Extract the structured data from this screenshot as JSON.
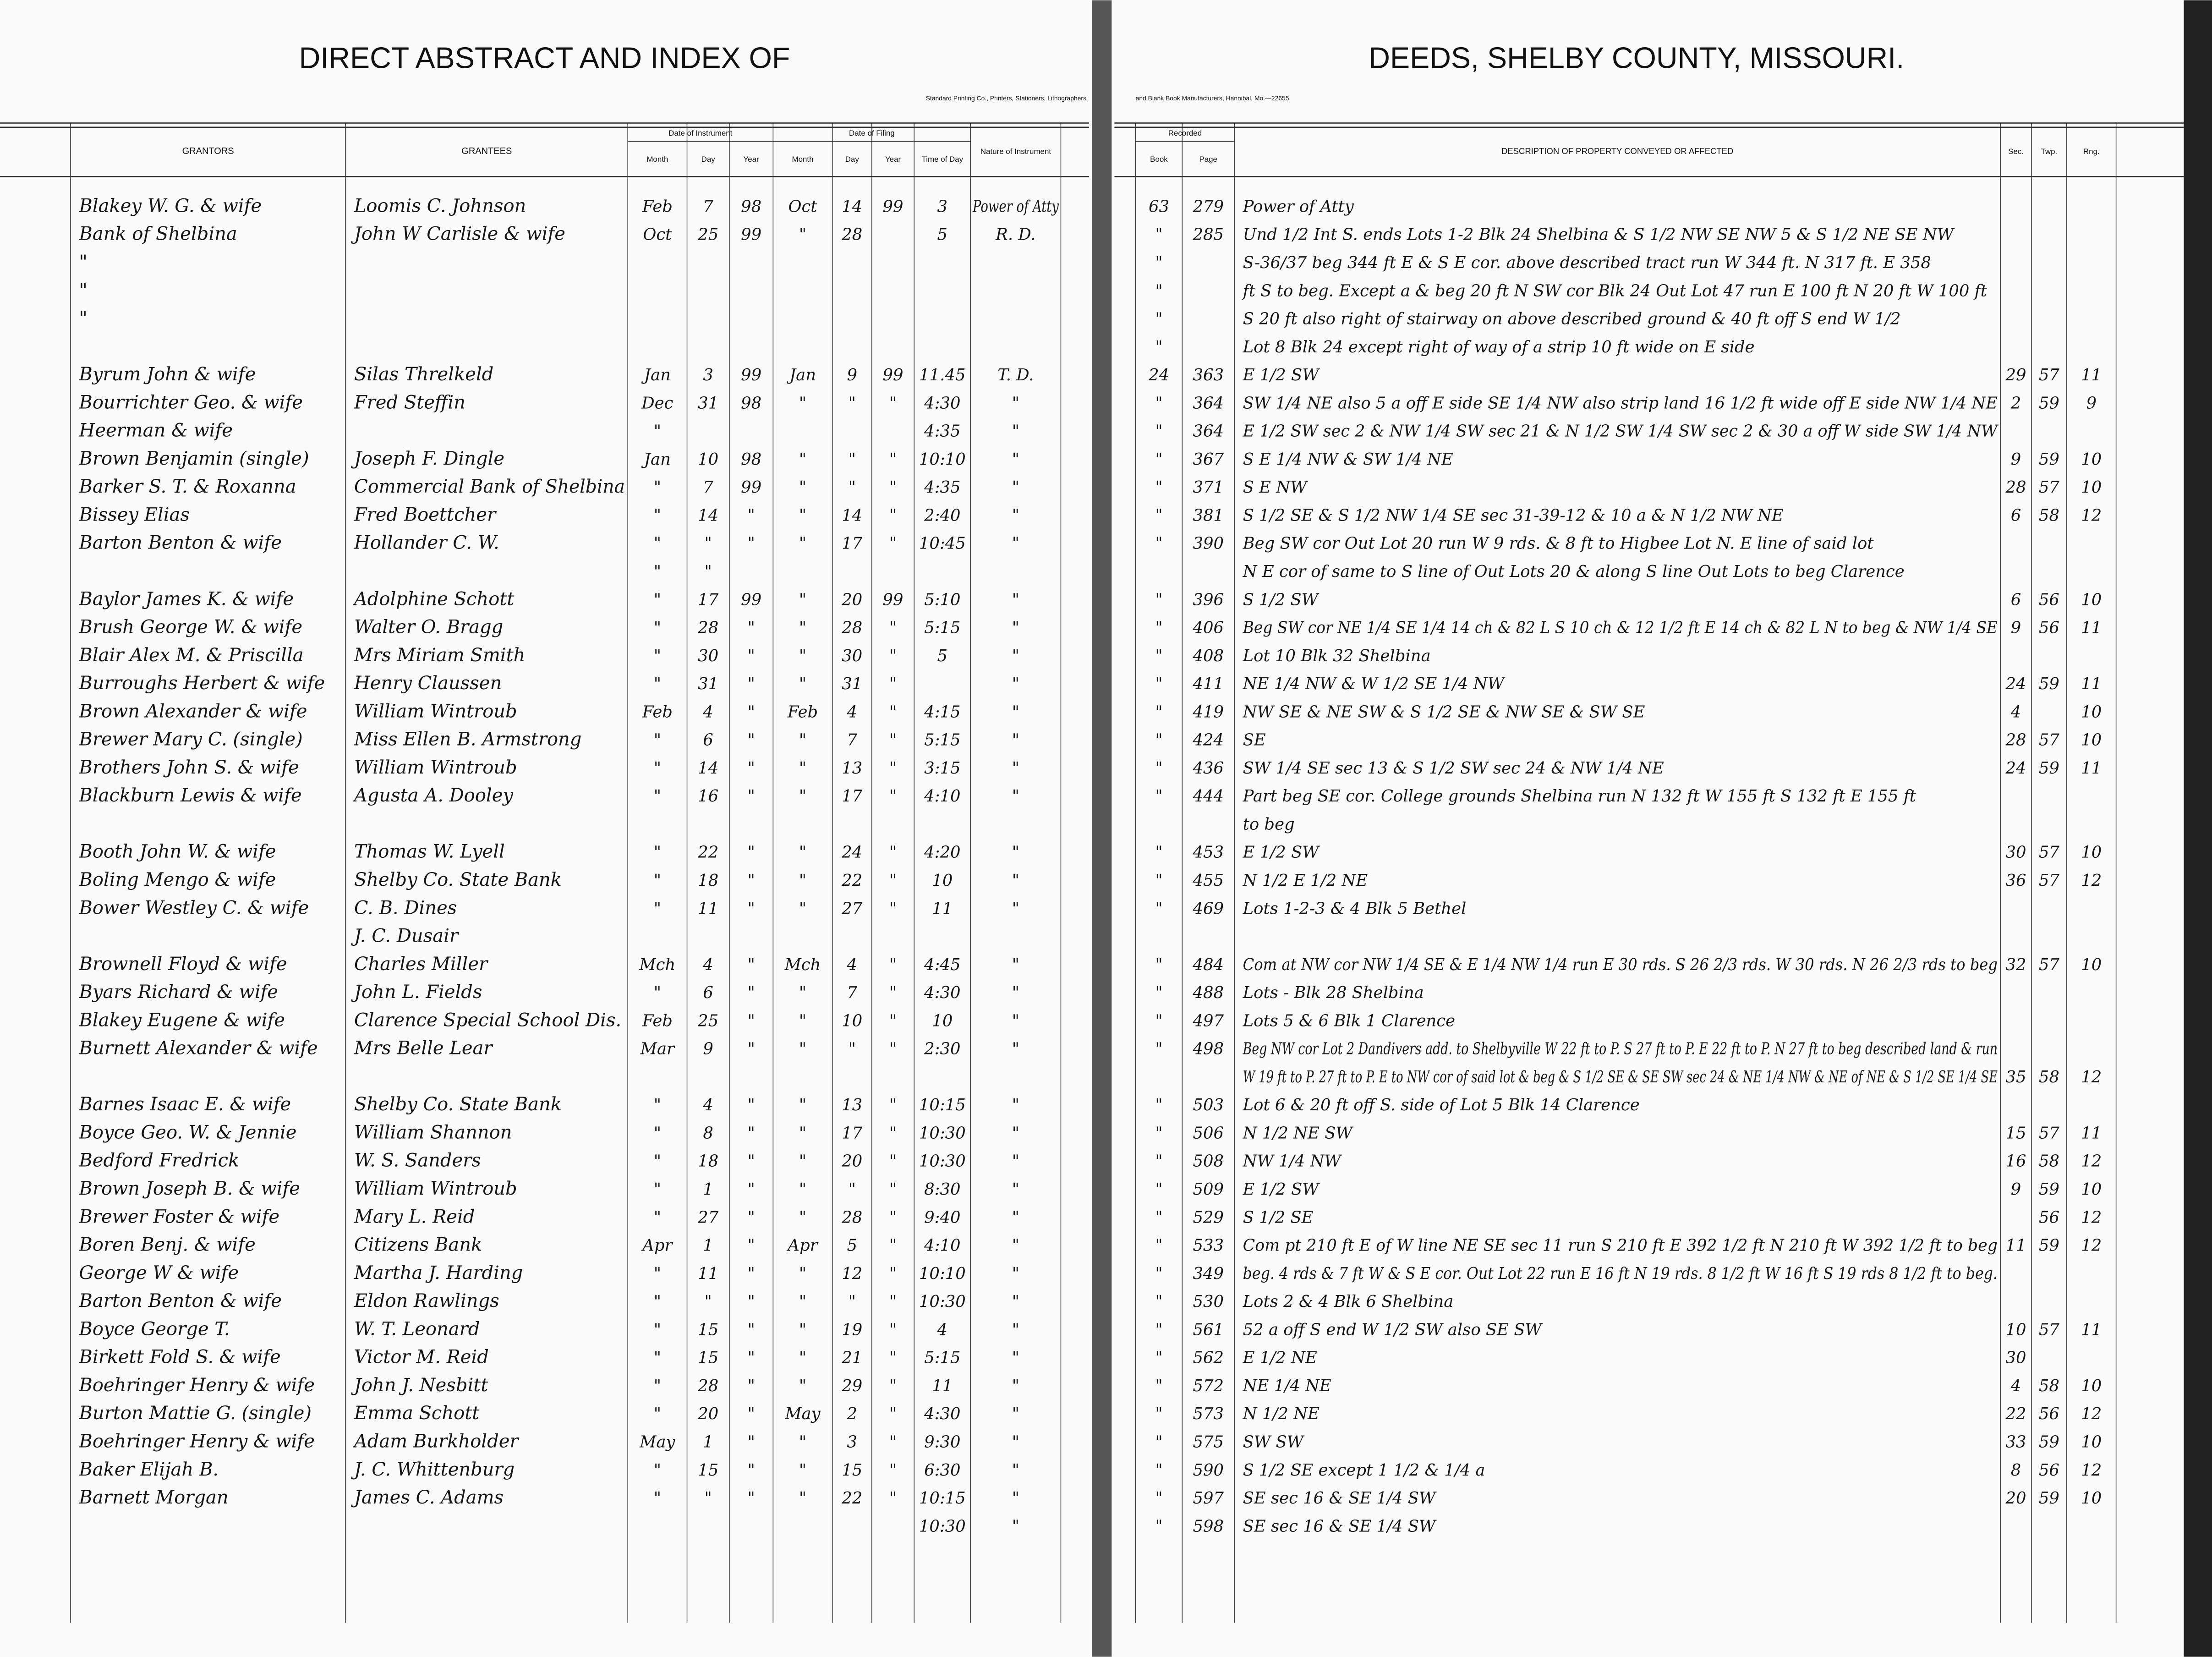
{
  "header": {
    "left_title": "DIRECT ABSTRACT AND INDEX OF",
    "right_title": "DEEDS, SHELBY COUNTY, MISSOURI.",
    "left_imprint": "Standard Printing Co., Printers, Stationers, Lithographers",
    "right_imprint": "and Blank Book Manufacturers, Hannibal, Mo.—22655"
  },
  "groups": [
    "Date of Instrument",
    "Date of Filing",
    "Recorded"
  ],
  "columns": [
    "GRANTORS",
    "GRANTEES",
    "Month",
    "Day",
    "Year",
    "Month",
    "Day",
    "Year",
    "Time of Day",
    "Nature of Instrument",
    "Book",
    "Page",
    "DESCRIPTION OF PROPERTY CONVEYED OR AFFECTED",
    "Sec.",
    "Twp.",
    "Rng."
  ],
  "rows": [
    [
      "Blakey W. G. & wife",
      "Loomis C. Johnson",
      "Feb",
      "7",
      "98",
      "Oct",
      "14",
      "99",
      "3",
      "Power of Atty",
      "63",
      "279",
      "Power of Atty",
      null,
      null,
      null
    ],
    [
      "Bank of Shelbina",
      "John W Carlisle & wife",
      "Oct",
      "25",
      "99",
      "\"",
      "28",
      null,
      "5",
      "R. D.",
      "\"",
      "285",
      "Und 1/2 Int S. ends Lots 1-2 Blk 24 Shelbina & S 1/2 NW SE NW 5 & S 1/2 NE SE NW",
      null,
      null,
      null
    ],
    [
      "\"",
      null,
      null,
      null,
      null,
      null,
      null,
      null,
      null,
      null,
      "\"",
      null,
      "S-36/37 beg 344 ft E & S E cor. above described tract run W 344 ft. N 317 ft. E 358",
      null,
      null,
      null
    ],
    [
      "\"",
      null,
      null,
      null,
      null,
      null,
      null,
      null,
      null,
      null,
      "\"",
      null,
      "ft S to beg. Except a & beg 20 ft N SW cor Blk 24 Out Lot 47 run E 100 ft N 20 ft W 100 ft",
      null,
      null,
      null
    ],
    [
      "\"",
      null,
      null,
      null,
      null,
      null,
      null,
      null,
      null,
      null,
      "\"",
      null,
      "S 20 ft also right of stairway on above described ground & 40 ft off S end W 1/2",
      null,
      null,
      null
    ],
    [
      null,
      null,
      null,
      null,
      null,
      null,
      null,
      null,
      null,
      null,
      "\"",
      null,
      "Lot 8 Blk 24 except right of way of a strip 10 ft wide on E side",
      null,
      null,
      null
    ],
    [
      "Byrum John & wife",
      "Silas Threlkeld",
      "Jan",
      "3",
      "99",
      "Jan",
      "9",
      "99",
      "11.45",
      "T. D.",
      "24",
      "363",
      "E 1/2 SW",
      "29",
      "57",
      "11"
    ],
    [
      "Bourrichter Geo. & wife",
      "Fred Steffin",
      "Dec",
      "31",
      "98",
      "\"",
      "\"",
      "\"",
      "4:30",
      "\"",
      "\"",
      "364",
      "SW 1/4 NE also 5 a off E side SE 1/4 NW also strip land 16 1/2 ft wide off E side NW 1/4 NE",
      "2",
      "59",
      "9"
    ],
    [
      "Heerman & wife",
      null,
      "\"",
      null,
      null,
      null,
      null,
      null,
      "4:35",
      "\"",
      "\"",
      "364",
      "E 1/2 SW sec 2 & NW 1/4 SW sec 21 & N 1/2 SW 1/4 SW sec 2 & 30 a off W side SW 1/4 NW",
      null,
      null,
      null
    ],
    [
      "Brown Benjamin (single)",
      "Joseph F. Dingle",
      "Jan",
      "10",
      "98",
      "\"",
      "\"",
      "\"",
      "10:10",
      "\"",
      "\"",
      "367",
      "S E 1/4 NW & SW 1/4 NE",
      "9",
      "59",
      "10"
    ],
    [
      "Barker S. T. & Roxanna",
      "Commercial Bank of Shelbina",
      "\"",
      "7",
      "99",
      "\"",
      "\"",
      "\"",
      "4:35",
      "\"",
      "\"",
      "371",
      "S E NW",
      "28",
      "57",
      "10"
    ],
    [
      "Bissey Elias",
      "Fred Boettcher",
      "\"",
      "14",
      "\"",
      "\"",
      "14",
      "\"",
      "2:40",
      "\"",
      "\"",
      "381",
      "S 1/2 SE & S 1/2 NW 1/4 SE sec 31-39-12 & 10 a & N 1/2 NW NE",
      "6",
      "58",
      "12"
    ],
    [
      "Barton Benton & wife",
      "Hollander C. W.",
      "\"",
      "\"",
      "\"",
      "\"",
      "17",
      "\"",
      "10:45",
      "\"",
      "\"",
      "390",
      "Beg SW cor Out Lot 20 run W 9 rds. & 8 ft to Higbee Lot N. E line of said lot",
      null,
      null,
      null
    ],
    [
      null,
      null,
      "\"",
      "\"",
      null,
      null,
      null,
      null,
      null,
      null,
      null,
      null,
      "N E cor of same to S line of Out Lots 20 & along S line Out Lots to beg Clarence",
      null,
      null,
      null
    ],
    [
      "Baylor James K. & wife",
      "Adolphine Schott",
      "\"",
      "17",
      "99",
      "\"",
      "20",
      "99",
      "5:10",
      "\"",
      "\"",
      "396",
      "S 1/2 SW",
      "6",
      "56",
      "10"
    ],
    [
      "Brush George W. & wife",
      "Walter O. Bragg",
      "\"",
      "28",
      "\"",
      "\"",
      "28",
      "\"",
      "5:15",
      "\"",
      "\"",
      "406",
      "Beg SW cor NE 1/4 SE 1/4 14 ch & 82 L S 10 ch & 12 1/2 ft E 14 ch & 82 L N to beg & NW 1/4 SE",
      "9",
      "56",
      "11"
    ],
    [
      "Blair Alex M. & Priscilla",
      "Mrs Miriam Smith",
      "\"",
      "30",
      "\"",
      "\"",
      "30",
      "\"",
      "5",
      "\"",
      "\"",
      "408",
      "Lot 10 Blk 32 Shelbina",
      null,
      null,
      null
    ],
    [
      "Burroughs Herbert & wife",
      "Henry Claussen",
      "\"",
      "31",
      "\"",
      "\"",
      "31",
      "\"",
      null,
      "\"",
      "\"",
      "411",
      "NE 1/4 NW & W 1/2 SE 1/4 NW",
      "24",
      "59",
      "11"
    ],
    [
      "Brown Alexander & wife",
      "William Wintroub",
      "Feb",
      "4",
      "\"",
      "Feb",
      "4",
      "\"",
      "4:15",
      "\"",
      "\"",
      "419",
      "NW SE & NE SW & S 1/2 SE & NW SE & SW SE",
      "4",
      null,
      "10"
    ],
    [
      "Brewer Mary C. (single)",
      "Miss Ellen B. Armstrong",
      "\"",
      "6",
      "\"",
      "\"",
      "7",
      "\"",
      "5:15",
      "\"",
      "\"",
      "424",
      "SE",
      "28",
      "57",
      "10"
    ],
    [
      "Brothers John S. & wife",
      "William Wintroub",
      "\"",
      "14",
      "\"",
      "\"",
      "13",
      "\"",
      "3:15",
      "\"",
      "\"",
      "436",
      "SW 1/4 SE sec 13 & S 1/2 SW sec 24 & NW 1/4 NE",
      "24",
      "59",
      "11"
    ],
    [
      "Blackburn Lewis & wife",
      "Agusta A. Dooley",
      "\"",
      "16",
      "\"",
      "\"",
      "17",
      "\"",
      "4:10",
      "\"",
      "\"",
      "444",
      "Part beg SE cor. College grounds Shelbina run N 132 ft W 155 ft S 132 ft E 155 ft",
      null,
      null,
      null
    ],
    [
      null,
      null,
      null,
      null,
      null,
      null,
      null,
      null,
      null,
      null,
      null,
      null,
      "to beg",
      null,
      null,
      null
    ],
    [
      "Booth John W. & wife",
      "Thomas W. Lyell",
      "\"",
      "22",
      "\"",
      "\"",
      "24",
      "\"",
      "4:20",
      "\"",
      "\"",
      "453",
      "E 1/2 SW",
      "30",
      "57",
      "10"
    ],
    [
      "Boling Mengo & wife",
      "Shelby Co. State Bank",
      "\"",
      "18",
      "\"",
      "\"",
      "22",
      "\"",
      "10",
      "\"",
      "\"",
      "455",
      "N 1/2 E 1/2 NE",
      "36",
      "57",
      "12"
    ],
    [
      "Bower Westley C. & wife",
      "C. B. Dines",
      "\"",
      "11",
      "\"",
      "\"",
      "27",
      "\"",
      "11",
      "\"",
      "\"",
      "469",
      "Lots 1-2-3 & 4 Blk 5 Bethel",
      null,
      null,
      null
    ],
    [
      null,
      "J. C. Dusair",
      null,
      null,
      null,
      null,
      null,
      null,
      null,
      null,
      null,
      null,
      null,
      null,
      null,
      null
    ],
    [
      "Brownell Floyd & wife",
      "Charles Miller",
      "Mch",
      "4",
      "\"",
      "Mch",
      "4",
      "\"",
      "4:45",
      "\"",
      "\"",
      "484",
      "Com at NW cor NW 1/4 SE & E 1/4 NW 1/4 run E 30 rds. S 26 2/3 rds. W 30 rds. N 26 2/3 rds to beg",
      "32",
      "57",
      "10"
    ],
    [
      "Byars Richard & wife",
      "John L. Fields",
      "\"",
      "6",
      "\"",
      "\"",
      "7",
      "\"",
      "4:30",
      "\"",
      "\"",
      "488",
      "Lots - Blk 28 Shelbina",
      null,
      null,
      null
    ],
    [
      "Blakey Eugene & wife",
      "Clarence Special School Dis.",
      "Feb",
      "25",
      "\"",
      "\"",
      "10",
      "\"",
      "10",
      "\"",
      "\"",
      "497",
      "Lots 5 & 6 Blk 1 Clarence",
      null,
      null,
      null
    ],
    [
      "Burnett Alexander & wife",
      "Mrs Belle Lear",
      "Mar",
      "9",
      "\"",
      "\"",
      "\"",
      "\"",
      "2:30",
      "\"",
      "\"",
      "498",
      "Beg NW cor Lot 2 Dandivers add. to Shelbyville W 22 ft to P. S 27 ft to P. E 22 ft to P. N 27 ft to beg described land & run",
      null,
      null,
      null
    ],
    [
      null,
      null,
      null,
      null,
      null,
      null,
      null,
      null,
      null,
      null,
      null,
      null,
      "W 19 ft to P. 27 ft to P. E to NW cor of said lot & beg & S 1/2 SE & SE SW sec 24 & NE 1/4 NW & NE of NE & S 1/2 SE 1/4 SE",
      "35",
      "58",
      "12"
    ],
    [
      "Barnes Isaac E. & wife",
      "Shelby Co. State Bank",
      "\"",
      "4",
      "\"",
      "\"",
      "13",
      "\"",
      "10:15",
      "\"",
      "\"",
      "503",
      "Lot 6 & 20 ft off S. side of Lot 5 Blk 14 Clarence",
      null,
      null,
      null
    ],
    [
      "Boyce Geo. W. & Jennie",
      "William Shannon",
      "\"",
      "8",
      "\"",
      "\"",
      "17",
      "\"",
      "10:30",
      "\"",
      "\"",
      "506",
      "N 1/2 NE SW",
      "15",
      "57",
      "11"
    ],
    [
      "Bedford Fredrick",
      "W. S. Sanders",
      "\"",
      "18",
      "\"",
      "\"",
      "20",
      "\"",
      "10:30",
      "\"",
      "\"",
      "508",
      "NW 1/4 NW",
      "16",
      "58",
      "12"
    ],
    [
      "Brown Joseph B. & wife",
      "William Wintroub",
      "\"",
      "1",
      "\"",
      "\"",
      "\"",
      "\"",
      "8:30",
      "\"",
      "\"",
      "509",
      "E 1/2 SW",
      "9",
      "59",
      "10"
    ],
    [
      "Brewer Foster & wife",
      "Mary L. Reid",
      "\"",
      "27",
      "\"",
      "\"",
      "28",
      "\"",
      "9:40",
      "\"",
      "\"",
      "529",
      "S 1/2 SE",
      null,
      "56",
      "12"
    ],
    [
      "Boren Benj. & wife",
      "Citizens Bank",
      "Apr",
      "1",
      "\"",
      "Apr",
      "5",
      "\"",
      "4:10",
      "\"",
      "\"",
      "533",
      "Com pt 210 ft E of W line NE SE sec 11 run S 210 ft E 392 1/2 ft N 210 ft W 392 1/2 ft to beg",
      "11",
      "59",
      "12"
    ],
    [
      "George W & wife",
      "Martha J. Harding",
      "\"",
      "11",
      "\"",
      "\"",
      "12",
      "\"",
      "10:10",
      "\"",
      "\"",
      "349",
      "beg. 4 rds & 7 ft W & S E cor. Out Lot 22 run E 16 ft N 19 rds. 8 1/2 ft W 16 ft S 19 rds 8 1/2 ft to beg.",
      null,
      null,
      null
    ],
    [
      "Barton Benton & wife",
      "Eldon Rawlings",
      "\"",
      "\"",
      "\"",
      "\"",
      "\"",
      "\"",
      "10:30",
      "\"",
      "\"",
      "530",
      "Lots 2 & 4 Blk 6 Shelbina",
      null,
      null,
      null
    ],
    [
      "Boyce George T.",
      "W. T. Leonard",
      "\"",
      "15",
      "\"",
      "\"",
      "19",
      "\"",
      "4",
      "\"",
      "\"",
      "561",
      "52 a off S end W 1/2 SW also SE SW",
      "10",
      "57",
      "11"
    ],
    [
      "Birkett Fold S. & wife",
      "Victor M. Reid",
      "\"",
      "15",
      "\"",
      "\"",
      "21",
      "\"",
      "5:15",
      "\"",
      "\"",
      "562",
      "E 1/2 NE",
      "30",
      null,
      null
    ],
    [
      "Boehringer Henry & wife",
      "John J. Nesbitt",
      "\"",
      "28",
      "\"",
      "\"",
      "29",
      "\"",
      "11",
      "\"",
      "\"",
      "572",
      "NE 1/4 NE",
      "4",
      "58",
      "10"
    ],
    [
      "Burton Mattie G. (single)",
      "Emma Schott",
      "\"",
      "20",
      "\"",
      "May",
      "2",
      "\"",
      "4:30",
      "\"",
      "\"",
      "573",
      "N 1/2 NE",
      "22",
      "56",
      "12"
    ],
    [
      "Boehringer Henry & wife",
      "Adam Burkholder",
      "May",
      "1",
      "\"",
      "\"",
      "3",
      "\"",
      "9:30",
      "\"",
      "\"",
      "575",
      "SW SW",
      "33",
      "59",
      "10"
    ],
    [
      "Baker Elijah B.",
      "J. C. Whittenburg",
      "\"",
      "15",
      "\"",
      "\"",
      "15",
      "\"",
      "6:30",
      "\"",
      "\"",
      "590",
      "S 1/2 SE except 1 1/2 & 1/4 a",
      "8",
      "56",
      "12"
    ],
    [
      "Barnett Morgan",
      "James C. Adams",
      "\"",
      "\"",
      "\"",
      "\"",
      "22",
      "\"",
      "10:15",
      "\"",
      "\"",
      "597",
      "SE sec 16 & SE 1/4 SW",
      "20",
      "59",
      "10"
    ],
    [
      null,
      null,
      null,
      null,
      null,
      null,
      null,
      null,
      "10:30",
      "\"",
      "\"",
      "598",
      "SE sec 16 & SE 1/4 SW",
      null,
      null,
      null
    ]
  ]
}
